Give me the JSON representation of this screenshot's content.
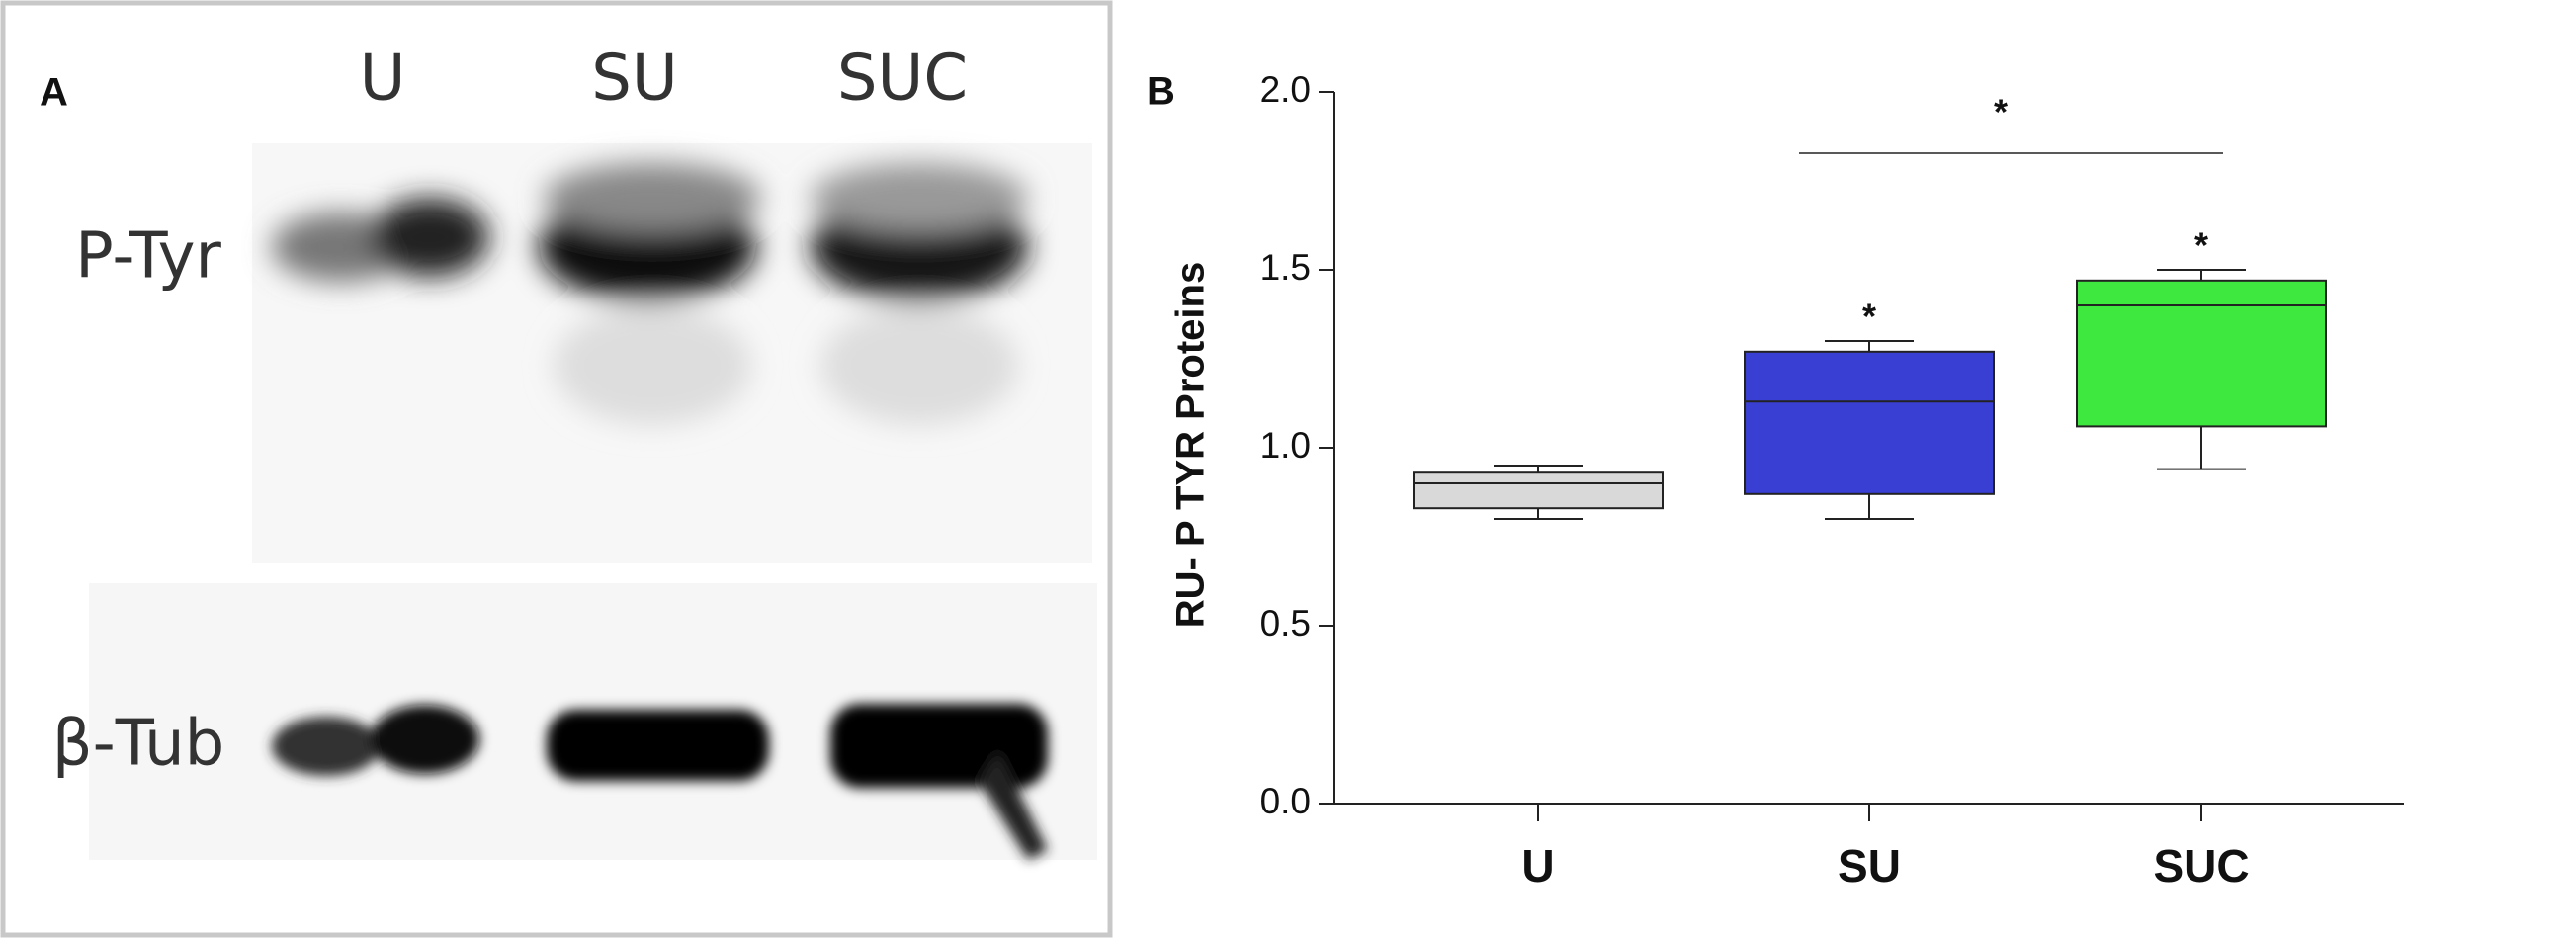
{
  "panel_a": {
    "label": "A",
    "lanes": [
      "U",
      "SU",
      "SUC"
    ],
    "rows": [
      "P-Tyr",
      "β-Tub"
    ]
  },
  "chart_data": {
    "type": "box",
    "panel_label": "B",
    "ylabel": "RU- P TYR Proteins",
    "categories": [
      "U",
      "SU",
      "SUC"
    ],
    "colors": [
      "#d9d9d9",
      "#3a3fd4",
      "#3ee83e"
    ],
    "min": [
      0.8,
      0.8,
      0.94
    ],
    "q1": [
      0.83,
      0.87,
      1.06
    ],
    "median": [
      0.9,
      1.13,
      1.4
    ],
    "q3": [
      0.93,
      1.27,
      1.47
    ],
    "max": [
      0.95,
      1.3,
      1.5
    ],
    "ylim": [
      0,
      2
    ],
    "yticks": [
      {
        "value": 0,
        "label": "0.0"
      },
      {
        "value": 0.5,
        "label": "0.5"
      },
      {
        "value": 1,
        "label": "1.0"
      },
      {
        "value": 1.5,
        "label": "1.5"
      },
      {
        "value": 2,
        "label": "2.0"
      }
    ],
    "annotations": [
      "*",
      "*",
      "*"
    ]
  }
}
